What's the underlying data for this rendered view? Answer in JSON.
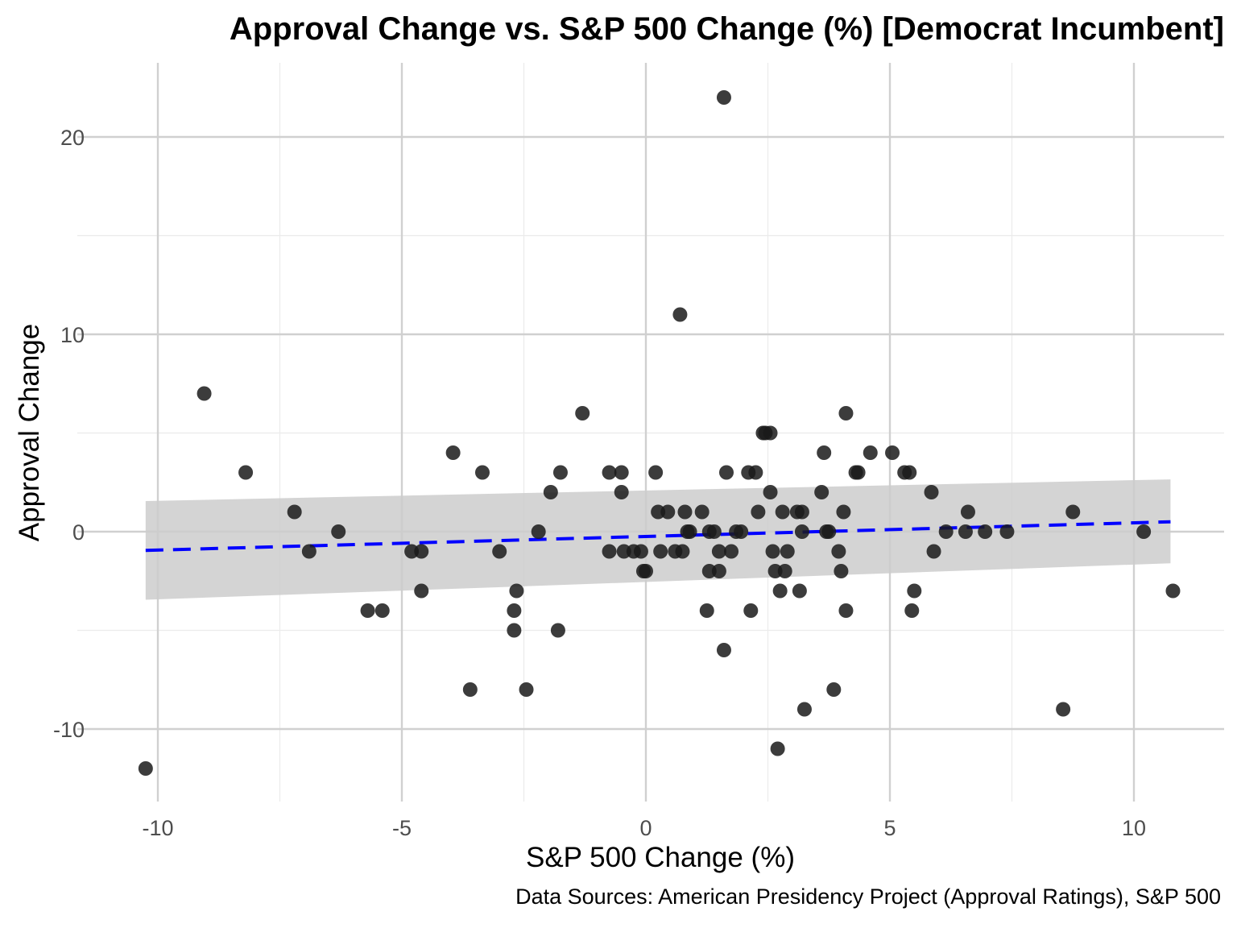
{
  "chart_data": {
    "type": "scatter",
    "title": "Approval Change vs. S&P 500 Change (%) [Democrat Incumbent]",
    "xlabel": "S&P 500 Change (%)",
    "ylabel": "Approval Change",
    "caption": "Data Sources: American Presidency Project (Approval Ratings), S&P 500",
    "xlim": [
      -11.5,
      11.8
    ],
    "ylim": [
      -13.5,
      23.5
    ],
    "x_ticks": [
      -10,
      -5,
      0,
      5,
      10
    ],
    "y_ticks": [
      -10,
      0,
      10,
      20
    ],
    "x_tick_labels": [
      "-10",
      "-5",
      "0",
      "5",
      "10"
    ],
    "y_tick_labels": [
      "-10",
      "0",
      "10",
      "20"
    ],
    "grid": true,
    "colors": {
      "points": "#1a1a1a",
      "trend": "#0000ff",
      "band": "#cccccc",
      "grid": "#d0d0d0"
    },
    "points": [
      [
        -10.25,
        -12
      ],
      [
        -9.05,
        7
      ],
      [
        -8.2,
        3
      ],
      [
        -7.2,
        1
      ],
      [
        -6.9,
        -1
      ],
      [
        -6.3,
        0
      ],
      [
        -5.7,
        -4
      ],
      [
        -5.4,
        -4
      ],
      [
        -4.8,
        -1
      ],
      [
        -4.6,
        -1
      ],
      [
        -4.6,
        -3
      ],
      [
        -3.95,
        4
      ],
      [
        -3.6,
        -8
      ],
      [
        -3.35,
        3
      ],
      [
        -3.0,
        -1
      ],
      [
        -2.7,
        -4
      ],
      [
        -2.7,
        -5
      ],
      [
        -2.65,
        -3
      ],
      [
        -2.45,
        -8
      ],
      [
        -2.2,
        0
      ],
      [
        -1.95,
        2
      ],
      [
        -1.8,
        -5
      ],
      [
        -1.75,
        3
      ],
      [
        -1.3,
        6
      ],
      [
        -0.75,
        3
      ],
      [
        -0.75,
        -1
      ],
      [
        -0.5,
        3
      ],
      [
        -0.5,
        2
      ],
      [
        -0.45,
        -1
      ],
      [
        -0.25,
        -1
      ],
      [
        -0.1,
        -1
      ],
      [
        -0.05,
        -2
      ],
      [
        0.0,
        -2
      ],
      [
        0.2,
        3
      ],
      [
        0.25,
        1
      ],
      [
        0.3,
        -1
      ],
      [
        0.45,
        1
      ],
      [
        0.6,
        -1
      ],
      [
        0.7,
        11
      ],
      [
        0.75,
        -1
      ],
      [
        0.8,
        1
      ],
      [
        0.85,
        0
      ],
      [
        0.9,
        0
      ],
      [
        1.15,
        1
      ],
      [
        1.25,
        -4
      ],
      [
        1.3,
        -2
      ],
      [
        1.3,
        0
      ],
      [
        1.4,
        0
      ],
      [
        1.5,
        -1
      ],
      [
        1.5,
        -2
      ],
      [
        1.6,
        -6
      ],
      [
        1.6,
        22
      ],
      [
        1.65,
        3
      ],
      [
        1.75,
        -1
      ],
      [
        1.85,
        0
      ],
      [
        1.95,
        0
      ],
      [
        2.1,
        3
      ],
      [
        2.15,
        -4
      ],
      [
        2.25,
        3
      ],
      [
        2.3,
        1
      ],
      [
        2.4,
        5
      ],
      [
        2.45,
        5
      ],
      [
        2.55,
        5
      ],
      [
        2.55,
        2
      ],
      [
        2.6,
        -1
      ],
      [
        2.65,
        -2
      ],
      [
        2.7,
        -11
      ],
      [
        2.75,
        -3
      ],
      [
        2.8,
        1
      ],
      [
        2.85,
        -2
      ],
      [
        2.9,
        -1
      ],
      [
        3.1,
        1
      ],
      [
        3.15,
        -3
      ],
      [
        3.2,
        1
      ],
      [
        3.2,
        0
      ],
      [
        3.25,
        -9
      ],
      [
        3.6,
        2
      ],
      [
        3.65,
        4
      ],
      [
        3.7,
        0
      ],
      [
        3.75,
        0
      ],
      [
        3.85,
        -8
      ],
      [
        3.95,
        -1
      ],
      [
        4.0,
        -2
      ],
      [
        4.05,
        1
      ],
      [
        4.1,
        6
      ],
      [
        4.1,
        -4
      ],
      [
        4.3,
        3
      ],
      [
        4.35,
        3
      ],
      [
        4.6,
        4
      ],
      [
        5.05,
        4
      ],
      [
        5.3,
        3
      ],
      [
        5.4,
        3
      ],
      [
        5.45,
        -4
      ],
      [
        5.5,
        -3
      ],
      [
        5.85,
        2
      ],
      [
        5.9,
        -1
      ],
      [
        6.15,
        0
      ],
      [
        6.55,
        0
      ],
      [
        6.6,
        1
      ],
      [
        6.95,
        0
      ],
      [
        7.4,
        0
      ],
      [
        8.55,
        -9
      ],
      [
        8.75,
        1
      ],
      [
        10.2,
        0
      ],
      [
        10.8,
        -3
      ]
    ],
    "trend_line": {
      "x": [
        -10.25,
        10.75
      ],
      "y": [
        -0.95,
        0.5
      ]
    },
    "confidence_band": {
      "x": [
        -10.25,
        10.75
      ],
      "upper": [
        1.55,
        2.65
      ],
      "lower": [
        -3.45,
        -1.6
      ]
    }
  }
}
